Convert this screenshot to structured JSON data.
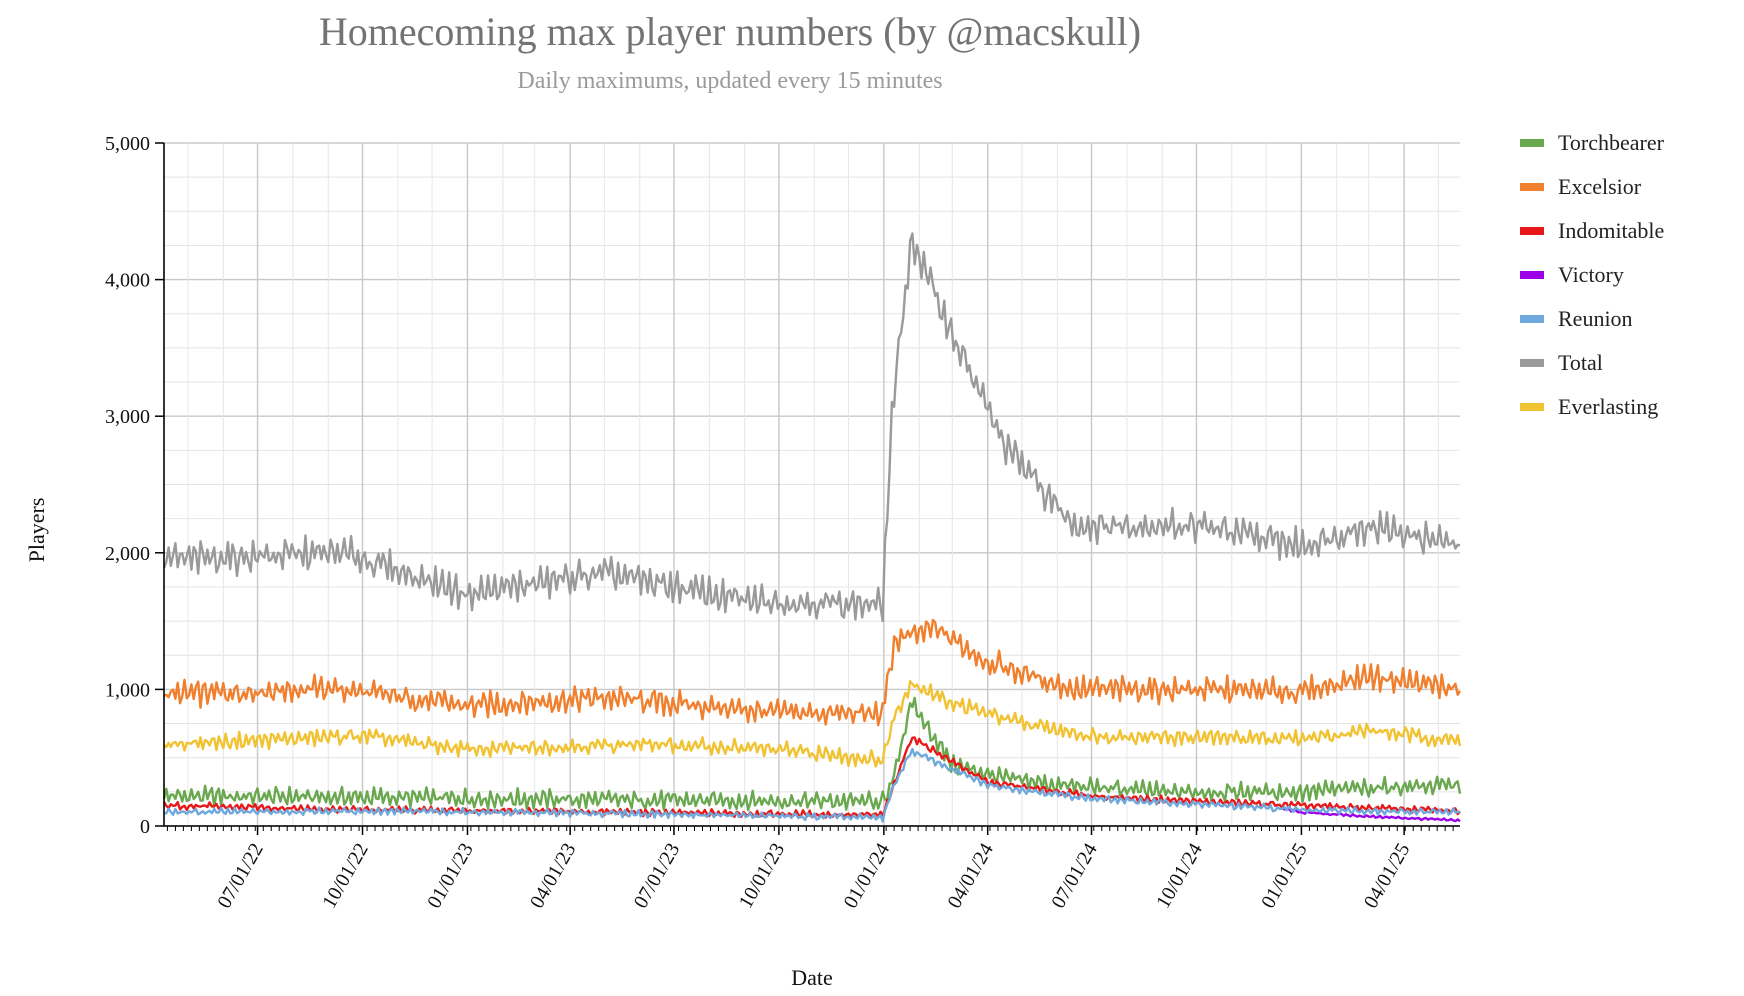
{
  "chart_data": {
    "type": "line",
    "title": "Homecoming max player numbers (by @macskull)",
    "subtitle": "Daily maximums, updated every 15 minutes",
    "xlabel": "Date",
    "ylabel": "Players",
    "ylim": [
      0,
      5000
    ],
    "yticks": [
      0,
      1000,
      2000,
      3000,
      4000,
      5000
    ],
    "ytick_labels": [
      "0",
      "1,000",
      "2,000",
      "3,000",
      "4,000",
      "5,000"
    ],
    "x_start": "2022-04-10",
    "x_end": "2025-05-20",
    "xticks": [
      "2022-07-01",
      "2022-10-01",
      "2023-01-01",
      "2023-04-01",
      "2023-07-01",
      "2023-10-01",
      "2024-01-01",
      "2024-04-01",
      "2024-07-01",
      "2024-10-01",
      "2025-01-01",
      "2025-04-01"
    ],
    "xtick_labels": [
      "07/01/22",
      "10/01/22",
      "01/01/23",
      "04/01/23",
      "07/01/23",
      "10/01/23",
      "01/01/24",
      "04/01/24",
      "07/01/24",
      "10/01/24",
      "01/01/25",
      "04/01/25"
    ],
    "grid": true,
    "legend": "right",
    "series": [
      {
        "name": "Torchbearer",
        "color": "#6aa84f",
        "swing": 80,
        "x": [
          "2022-04-10",
          "2022-10-01",
          "2023-06-01",
          "2023-12-31",
          "2024-01-05",
          "2024-01-25",
          "2024-03-01",
          "2024-04-15",
          "2024-06-01",
          "2024-09-01",
          "2025-01-01",
          "2025-03-01",
          "2025-05-20"
        ],
        "y": [
          220,
          210,
          190,
          180,
          220,
          900,
          450,
          350,
          300,
          250,
          250,
          280,
          300
        ]
      },
      {
        "name": "Excelsior",
        "color": "#f07f2e",
        "swing": 110,
        "x": [
          "2022-04-10",
          "2022-09-01",
          "2023-01-01",
          "2023-05-01",
          "2023-10-01",
          "2023-12-31",
          "2024-01-10",
          "2024-02-15",
          "2024-04-01",
          "2024-06-15",
          "2024-10-01",
          "2025-01-01",
          "2025-03-01",
          "2025-05-20"
        ],
        "y": [
          960,
          1010,
          880,
          940,
          830,
          820,
          1350,
          1450,
          1200,
          1000,
          1000,
          980,
          1100,
          1000
        ]
      },
      {
        "name": "Indomitable",
        "color": "#e81818",
        "swing": 30,
        "x": [
          "2022-04-10",
          "2022-10-01",
          "2023-06-01",
          "2023-12-31",
          "2024-01-10",
          "2024-01-25",
          "2024-04-01",
          "2024-07-01",
          "2024-10-01",
          "2025-01-01",
          "2025-05-20"
        ],
        "y": [
          150,
          120,
          100,
          80,
          300,
          650,
          320,
          220,
          180,
          150,
          110
        ]
      },
      {
        "name": "Victory",
        "color": "#9b00e8",
        "swing": 10,
        "x": [
          "2024-12-15",
          "2025-01-01",
          "2025-03-01",
          "2025-05-20"
        ],
        "y": [
          130,
          100,
          70,
          40
        ]
      },
      {
        "name": "Reunion",
        "color": "#6fa8dc",
        "swing": 30,
        "x": [
          "2022-04-10",
          "2022-10-01",
          "2023-06-01",
          "2023-12-31",
          "2024-01-10",
          "2024-01-25",
          "2024-04-01",
          "2024-07-01",
          "2024-10-01",
          "2025-01-01",
          "2025-05-20"
        ],
        "y": [
          100,
          110,
          90,
          60,
          300,
          550,
          300,
          200,
          160,
          120,
          100
        ]
      },
      {
        "name": "Total",
        "color": "#9a9a9a",
        "swing": 140,
        "x": [
          "2022-04-10",
          "2022-09-15",
          "2023-01-01",
          "2023-05-01",
          "2023-09-01",
          "2023-12-31",
          "2024-01-08",
          "2024-01-25",
          "2024-03-01",
          "2024-04-15",
          "2024-06-15",
          "2024-10-01",
          "2025-01-01",
          "2025-03-01",
          "2025-05-20"
        ],
        "y": [
          1950,
          2000,
          1700,
          1850,
          1650,
          1620,
          3000,
          4300,
          3600,
          2800,
          2200,
          2200,
          2050,
          2200,
          2050
        ]
      },
      {
        "name": "Everlasting",
        "color": "#f1c232",
        "swing": 70,
        "x": [
          "2022-04-10",
          "2022-10-01",
          "2023-01-01",
          "2023-06-01",
          "2023-10-01",
          "2023-12-31",
          "2024-01-10",
          "2024-01-25",
          "2024-03-01",
          "2024-05-01",
          "2024-07-01",
          "2025-01-01",
          "2025-03-01",
          "2025-05-20"
        ],
        "y": [
          600,
          660,
          560,
          600,
          560,
          480,
          800,
          1050,
          900,
          750,
          660,
          640,
          700,
          620
        ]
      }
    ]
  }
}
